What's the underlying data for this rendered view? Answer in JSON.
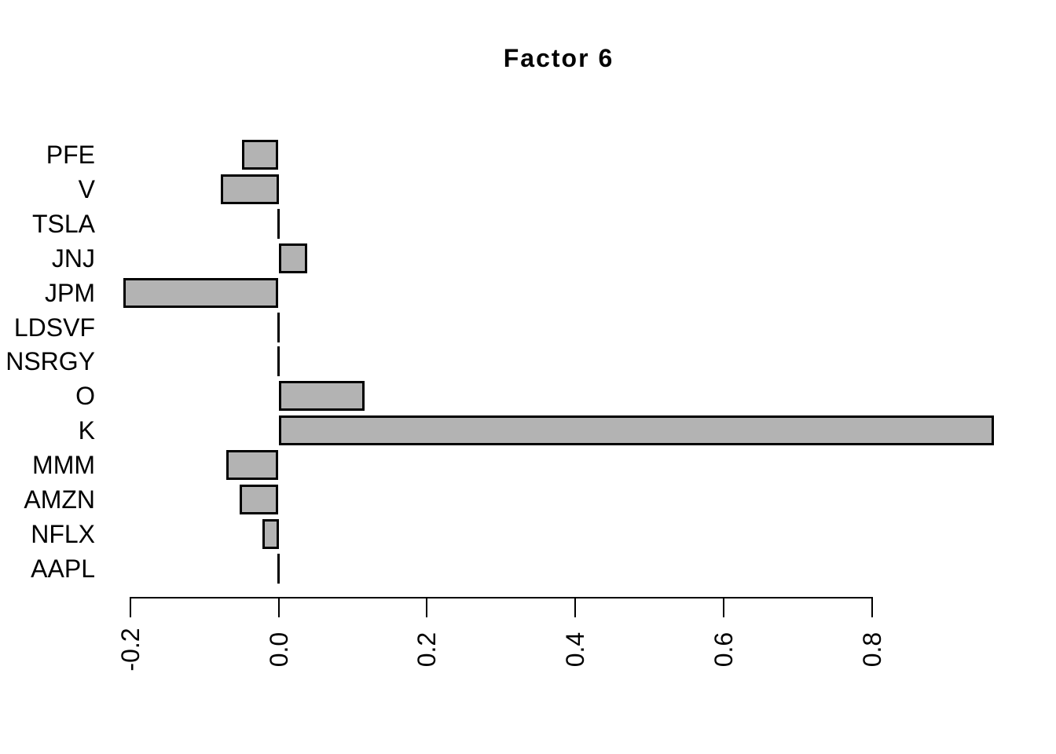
{
  "figure": {
    "title": "Factor 6"
  },
  "colors": {
    "background": "#ffffff",
    "bar_fill": "#b3b3b3",
    "bar_border": "#000000",
    "axis": "#000000",
    "text": "#000000"
  },
  "chart_data": {
    "type": "bar",
    "orientation": "horizontal",
    "title": "Factor 6",
    "categories": [
      "PFE",
      "V",
      "TSLA",
      "JNJ",
      "JPM",
      "LDSVF",
      "NSRGY",
      "O",
      "K",
      "MMM",
      "AMZN",
      "NFLX",
      "AAPL"
    ],
    "values": [
      -0.049,
      -0.078,
      0.0,
      0.038,
      -0.209,
      0.0,
      0.0,
      0.115,
      0.964,
      -0.07,
      -0.052,
      -0.022,
      0.0
    ],
    "xlabel": "",
    "ylabel": "",
    "xticks": [
      -0.2,
      0.0,
      0.2,
      0.4,
      0.6,
      0.8
    ],
    "xtick_labels": [
      "-0.2",
      "0.0",
      "0.2",
      "0.4",
      "0.6",
      "0.8"
    ],
    "xlim": [
      -0.26,
      1.01
    ],
    "grid": false,
    "legend": false
  }
}
